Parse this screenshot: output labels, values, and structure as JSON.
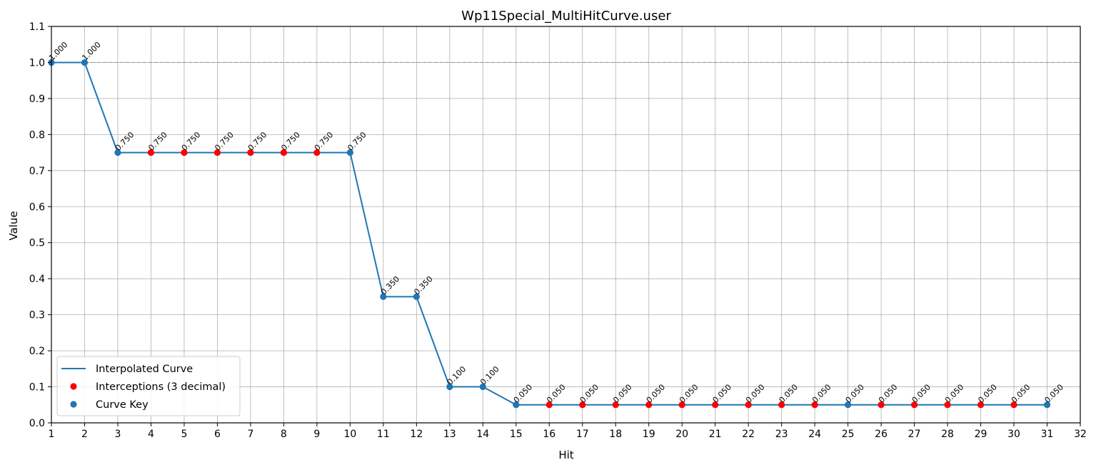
{
  "chart_data": {
    "type": "line",
    "title": "Wp11Special_MultiHitCurve.user",
    "xlabel": "Hit",
    "ylabel": "Value",
    "xlim": [
      1,
      32
    ],
    "ylim": [
      0,
      1.1
    ],
    "x_ticks": [
      1,
      2,
      3,
      4,
      5,
      6,
      7,
      8,
      9,
      10,
      11,
      12,
      13,
      14,
      15,
      16,
      17,
      18,
      19,
      20,
      21,
      22,
      23,
      24,
      25,
      26,
      27,
      28,
      29,
      30,
      31,
      32
    ],
    "y_ticks": [
      0.0,
      0.1,
      0.2,
      0.3,
      0.4,
      0.5,
      0.6,
      0.7,
      0.8,
      0.9,
      1.0,
      1.1
    ],
    "y_tick_labels": [
      "0.0",
      "0.1",
      "0.2",
      "0.3",
      "0.4",
      "0.5",
      "0.6",
      "0.7",
      "0.8",
      "0.9",
      "1.0",
      "1.1"
    ],
    "grid": true,
    "reference_line": {
      "y": 1.0,
      "style": "dashed",
      "color": "#999999"
    },
    "legend_position": "lower-left",
    "series": [
      {
        "name": "Interpolated Curve",
        "kind": "line",
        "color": "#1f77b4",
        "x": [
          1,
          2,
          3,
          10,
          11,
          12,
          13,
          14,
          15,
          31
        ],
        "y": [
          1.0,
          1.0,
          0.75,
          0.75,
          0.35,
          0.35,
          0.1,
          0.1,
          0.05,
          0.05
        ]
      },
      {
        "name": "Interceptions (3 decimal)",
        "kind": "scatter",
        "color": "#ff0000",
        "x": [
          4,
          5,
          6,
          7,
          8,
          9,
          16,
          17,
          18,
          19,
          20,
          21,
          22,
          23,
          24,
          26,
          27,
          28,
          29,
          30
        ],
        "y": [
          0.75,
          0.75,
          0.75,
          0.75,
          0.75,
          0.75,
          0.05,
          0.05,
          0.05,
          0.05,
          0.05,
          0.05,
          0.05,
          0.05,
          0.05,
          0.05,
          0.05,
          0.05,
          0.05,
          0.05
        ]
      },
      {
        "name": "Curve Key",
        "kind": "scatter",
        "color": "#1f77b4",
        "x": [
          1,
          2,
          3,
          10,
          11,
          12,
          13,
          14,
          15,
          25,
          31
        ],
        "y": [
          1.0,
          1.0,
          0.75,
          0.75,
          0.35,
          0.35,
          0.1,
          0.1,
          0.05,
          0.05,
          0.05
        ]
      }
    ],
    "annotations": [
      {
        "x": 1,
        "y": 1.0,
        "text": "1.000"
      },
      {
        "x": 2,
        "y": 1.0,
        "text": "1.000"
      },
      {
        "x": 3,
        "y": 0.75,
        "text": "0.750"
      },
      {
        "x": 4,
        "y": 0.75,
        "text": "0.750"
      },
      {
        "x": 5,
        "y": 0.75,
        "text": "0.750"
      },
      {
        "x": 6,
        "y": 0.75,
        "text": "0.750"
      },
      {
        "x": 7,
        "y": 0.75,
        "text": "0.750"
      },
      {
        "x": 8,
        "y": 0.75,
        "text": "0.750"
      },
      {
        "x": 9,
        "y": 0.75,
        "text": "0.750"
      },
      {
        "x": 10,
        "y": 0.75,
        "text": "0.750"
      },
      {
        "x": 11,
        "y": 0.35,
        "text": "0.350"
      },
      {
        "x": 12,
        "y": 0.35,
        "text": "0.350"
      },
      {
        "x": 13,
        "y": 0.1,
        "text": "0.100"
      },
      {
        "x": 14,
        "y": 0.1,
        "text": "0.100"
      },
      {
        "x": 15,
        "y": 0.05,
        "text": "0.050"
      },
      {
        "x": 16,
        "y": 0.05,
        "text": "0.050"
      },
      {
        "x": 17,
        "y": 0.05,
        "text": "0.050"
      },
      {
        "x": 18,
        "y": 0.05,
        "text": "0.050"
      },
      {
        "x": 19,
        "y": 0.05,
        "text": "0.050"
      },
      {
        "x": 20,
        "y": 0.05,
        "text": "0.050"
      },
      {
        "x": 21,
        "y": 0.05,
        "text": "0.050"
      },
      {
        "x": 22,
        "y": 0.05,
        "text": "0.050"
      },
      {
        "x": 23,
        "y": 0.05,
        "text": "0.050"
      },
      {
        "x": 24,
        "y": 0.05,
        "text": "0.050"
      },
      {
        "x": 25,
        "y": 0.05,
        "text": "0.050"
      },
      {
        "x": 26,
        "y": 0.05,
        "text": "0.050"
      },
      {
        "x": 27,
        "y": 0.05,
        "text": "0.050"
      },
      {
        "x": 28,
        "y": 0.05,
        "text": "0.050"
      },
      {
        "x": 29,
        "y": 0.05,
        "text": "0.050"
      },
      {
        "x": 30,
        "y": 0.05,
        "text": "0.050"
      },
      {
        "x": 31,
        "y": 0.05,
        "text": "0.050"
      }
    ]
  }
}
